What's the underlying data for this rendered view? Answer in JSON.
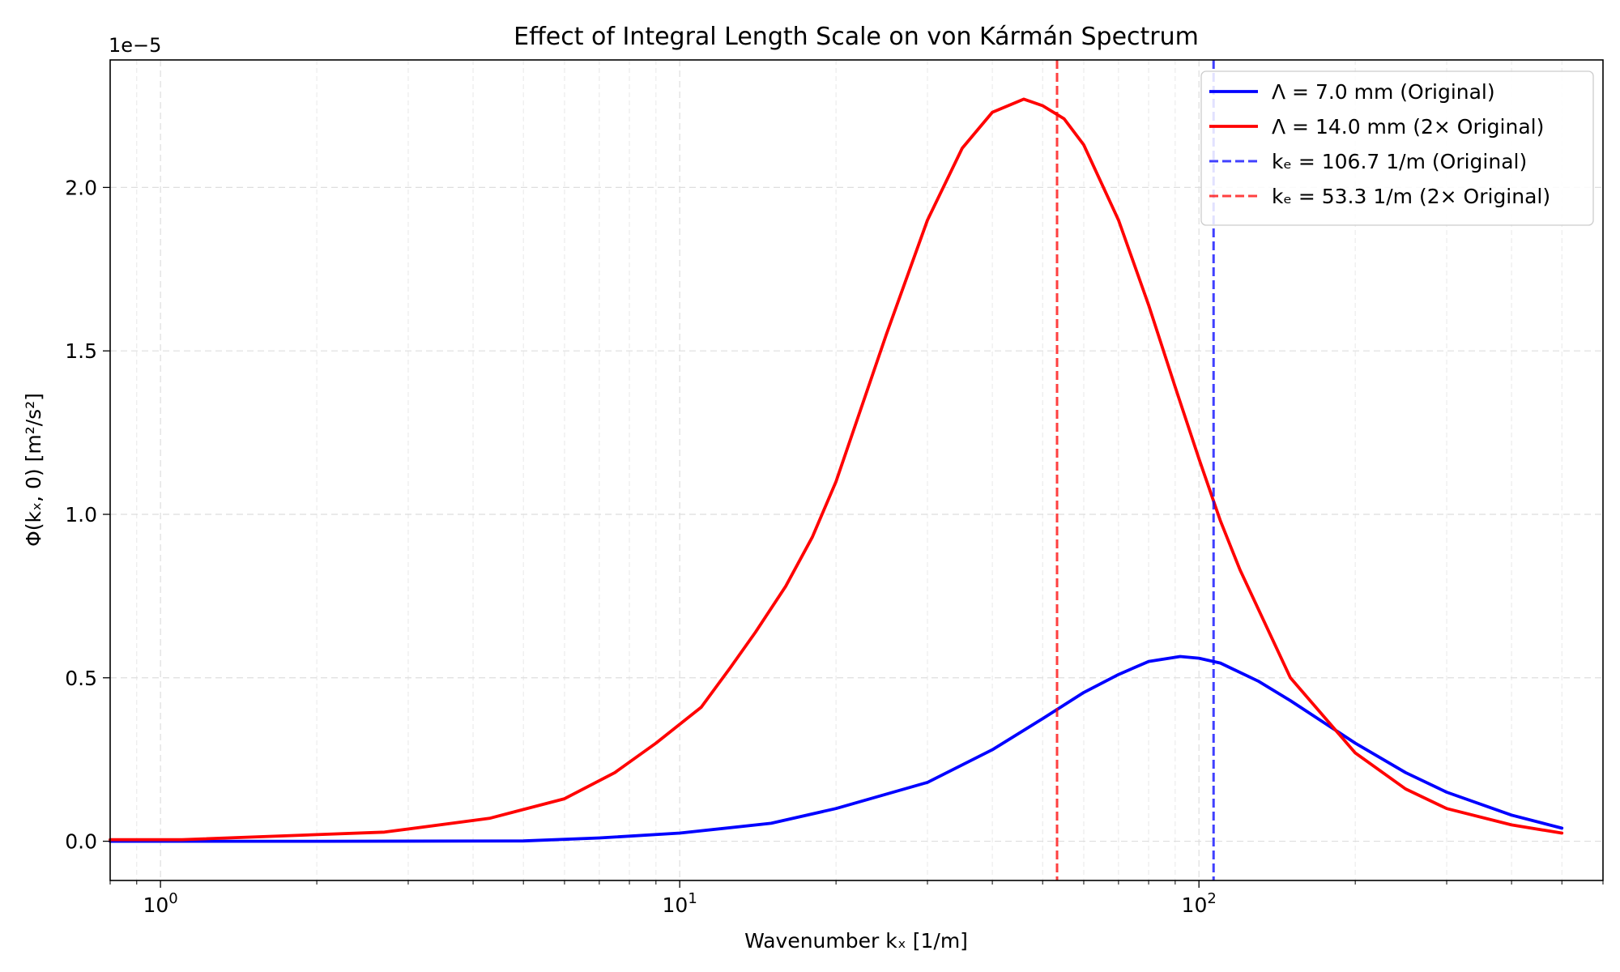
{
  "chart_data": {
    "type": "line",
    "title": "Effect of Integral Length Scale on von Kármán Spectrum",
    "xlabel": "Wavenumber kₓ [1/m]",
    "ylabel": "Φ(kₓ, 0) [m²/s²]",
    "y_offset_label": "1e−5",
    "x_scale": "log",
    "xlim": [
      0.8,
      600
    ],
    "ylim": [
      -1.2e-06,
      2.39e-05
    ],
    "x_major_ticks": [
      {
        "value": 1,
        "base": "10",
        "exp": "0"
      },
      {
        "value": 10,
        "base": "10",
        "exp": "1"
      },
      {
        "value": 100,
        "base": "10",
        "exp": "2"
      }
    ],
    "y_ticks": [
      {
        "value": 0,
        "label": "0.0"
      },
      {
        "value": 5e-06,
        "label": "0.5"
      },
      {
        "value": 1e-05,
        "label": "1.0"
      },
      {
        "value": 1.5e-05,
        "label": "1.5"
      },
      {
        "value": 2e-05,
        "label": "2.0"
      }
    ],
    "grid": true,
    "legend_position": "top-right",
    "series": [
      {
        "name": "Λ = 7.0 mm (Original)",
        "color": "#0000ff",
        "style": "solid",
        "x": [
          0.8,
          1,
          2,
          5,
          7,
          10,
          15,
          20,
          30,
          40,
          50,
          60,
          70,
          80,
          92,
          100,
          110,
          130,
          150,
          200,
          250,
          300,
          400,
          500
        ],
        "y": [
          0.0,
          0.0,
          0.0,
          1e-08,
          1e-07,
          2.5e-07,
          5.5e-07,
          1e-06,
          1.8e-06,
          2.8e-06,
          3.75e-06,
          4.55e-06,
          5.1e-06,
          5.5e-06,
          5.65e-06,
          5.6e-06,
          5.45e-06,
          4.9e-06,
          4.3e-06,
          3e-06,
          2.1e-06,
          1.5e-06,
          8e-07,
          4e-07
        ]
      },
      {
        "name": "Λ = 14.0 mm (2× Original)",
        "color": "#ff0000",
        "style": "solid",
        "x": [
          0.8,
          1.1,
          2.7,
          4.3,
          6,
          7.5,
          9,
          11,
          12.5,
          14,
          16,
          18,
          20,
          25,
          30,
          35,
          40,
          46,
          50,
          55,
          60,
          70,
          80,
          90,
          100,
          110,
          120,
          150,
          200,
          250,
          300,
          400,
          500
        ],
        "y": [
          5e-08,
          5e-08,
          2.8e-07,
          7e-07,
          1.3e-06,
          2.1e-06,
          3e-06,
          4.1e-06,
          5.3e-06,
          6.4e-06,
          7.8e-06,
          9.3e-06,
          1.1e-05,
          1.55e-05,
          1.9e-05,
          2.12e-05,
          2.23e-05,
          2.27e-05,
          2.25e-05,
          2.21e-05,
          2.13e-05,
          1.9e-05,
          1.64e-05,
          1.39e-05,
          1.17e-05,
          9.8e-06,
          8.3e-06,
          5e-06,
          2.7e-06,
          1.6e-06,
          1e-06,
          5e-07,
          2.5e-07
        ]
      },
      {
        "name": "kₑ = 106.7 1/m (Original)",
        "color": "#0000ff",
        "style": "dashed",
        "vline_x": 106.7
      },
      {
        "name": "kₑ = 53.3 1/m (2× Original)",
        "color": "#ff0000",
        "style": "dashed",
        "vline_x": 53.3
      }
    ]
  }
}
